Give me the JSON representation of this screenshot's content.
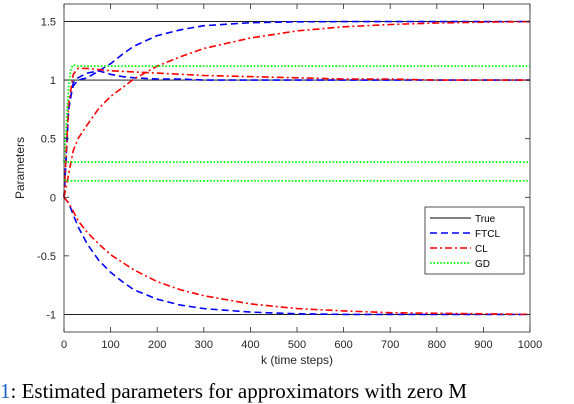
{
  "caption": {
    "number": "1",
    "text": ": Estimated parameters for approximators with zero M"
  },
  "chart_data": {
    "type": "line",
    "title": "",
    "xlabel": "k (time steps)",
    "ylabel": "Parameters",
    "xlim": [
      0,
      1000
    ],
    "ylim": [
      -1.15,
      1.65
    ],
    "xticks": [
      0,
      100,
      200,
      300,
      400,
      500,
      600,
      700,
      800,
      900,
      1000
    ],
    "xtick_labels": [
      "0",
      "100",
      "200",
      "300",
      "400",
      "500",
      "600",
      "700",
      "800",
      "900",
      "1000"
    ],
    "yticks": [
      -1,
      -0.5,
      0,
      0.5,
      1,
      1.5
    ],
    "ytick_labels": [
      "-1",
      "-0.5",
      "0",
      "0.5",
      "1",
      "1.5"
    ],
    "grid": false,
    "legend_position": "lower-right",
    "legend": [
      {
        "label": "True",
        "color": "#000000",
        "style": "solid"
      },
      {
        "label": "FTCL",
        "color": "#0000ff",
        "style": "dashed"
      },
      {
        "label": "CL",
        "color": "#ff0000",
        "style": "dashdot"
      },
      {
        "label": "GD",
        "color": "#00ff00",
        "style": "dotted"
      }
    ],
    "series": [
      {
        "name": "True",
        "color": "#000000",
        "style": "solid",
        "lines": [
          {
            "x": [
              0,
              1000
            ],
            "y": [
              1.5,
              1.5
            ]
          },
          {
            "x": [
              0,
              1000
            ],
            "y": [
              1,
              1
            ]
          },
          {
            "x": [
              0,
              1000
            ],
            "y": [
              -1,
              -1
            ]
          }
        ]
      },
      {
        "name": "FTCL",
        "color": "#0000ff",
        "style": "dashed",
        "lines": [
          {
            "x": [
              0,
              10,
              20,
              30,
              50,
              75,
              100,
              125,
              150,
              200,
              250,
              300,
              400,
              500,
              600,
              700,
              800,
              900,
              1000
            ],
            "y": [
              0,
              0.75,
              0.98,
              1.02,
              1.06,
              1.08,
              1.05,
              1.03,
              1.02,
              1.01,
              1.01,
              1.0,
              1.0,
              1.0,
              1.0,
              1.0,
              1.0,
              1.0,
              1.0
            ]
          },
          {
            "x": [
              0,
              10,
              20,
              30,
              50,
              75,
              100,
              125,
              150,
              200,
              250,
              300,
              400,
              500,
              600,
              700,
              800,
              900,
              1000
            ],
            "y": [
              0,
              0.8,
              0.95,
              1.0,
              1.02,
              1.08,
              1.14,
              1.22,
              1.29,
              1.38,
              1.43,
              1.465,
              1.49,
              1.498,
              1.5,
              1.5,
              1.5,
              1.5,
              1.5
            ]
          },
          {
            "x": [
              0,
              10,
              20,
              30,
              50,
              75,
              100,
              125,
              150,
              200,
              250,
              300,
              400,
              500,
              600,
              700,
              800,
              900,
              1000
            ],
            "y": [
              0,
              -0.05,
              -0.15,
              -0.25,
              -0.4,
              -0.54,
              -0.64,
              -0.72,
              -0.79,
              -0.87,
              -0.92,
              -0.95,
              -0.98,
              -0.995,
              -1.0,
              -1.0,
              -1.0,
              -1.0,
              -1.0
            ]
          }
        ]
      },
      {
        "name": "CL",
        "color": "#ff0000",
        "style": "dashdot",
        "lines": [
          {
            "x": [
              0,
              10,
              20,
              30,
              50,
              75,
              100,
              150,
              200,
              250,
              300,
              400,
              500,
              600,
              700,
              800,
              900,
              1000
            ],
            "y": [
              0,
              0.8,
              1.05,
              1.1,
              1.1,
              1.09,
              1.08,
              1.07,
              1.06,
              1.05,
              1.04,
              1.03,
              1.02,
              1.01,
              1.01,
              1.0,
              1.0,
              1.0
            ]
          },
          {
            "x": [
              0,
              10,
              20,
              30,
              50,
              75,
              100,
              150,
              200,
              250,
              300,
              400,
              500,
              600,
              700,
              800,
              900,
              1000
            ],
            "y": [
              0,
              0.2,
              0.4,
              0.5,
              0.62,
              0.76,
              0.86,
              1.01,
              1.12,
              1.2,
              1.27,
              1.36,
              1.42,
              1.455,
              1.475,
              1.488,
              1.495,
              1.5
            ]
          },
          {
            "x": [
              0,
              10,
              20,
              30,
              50,
              75,
              100,
              150,
              200,
              250,
              300,
              400,
              500,
              600,
              700,
              800,
              900,
              1000
            ],
            "y": [
              0,
              -0.05,
              -0.12,
              -0.2,
              -0.3,
              -0.4,
              -0.49,
              -0.62,
              -0.72,
              -0.79,
              -0.84,
              -0.91,
              -0.95,
              -0.97,
              -0.985,
              -0.99,
              -0.995,
              -1.0
            ]
          }
        ]
      },
      {
        "name": "GD",
        "color": "#00ff00",
        "style": "dotted",
        "lines": [
          {
            "x": [
              0,
              10,
              15,
              20,
              30,
              50,
              100,
              1000
            ],
            "y": [
              0.3,
              0.95,
              1.1,
              1.13,
              1.12,
              1.12,
              1.12,
              1.12
            ]
          },
          {
            "x": [
              0,
              10,
              20,
              30,
              50,
              100,
              1000
            ],
            "y": [
              0.3,
              0.3,
              0.3,
              0.3,
              0.3,
              0.3,
              0.3
            ]
          },
          {
            "x": [
              0,
              10,
              20,
              30,
              50,
              100,
              1000
            ],
            "y": [
              0.15,
              0.14,
              0.14,
              0.14,
              0.14,
              0.14,
              0.14
            ]
          }
        ]
      }
    ]
  }
}
